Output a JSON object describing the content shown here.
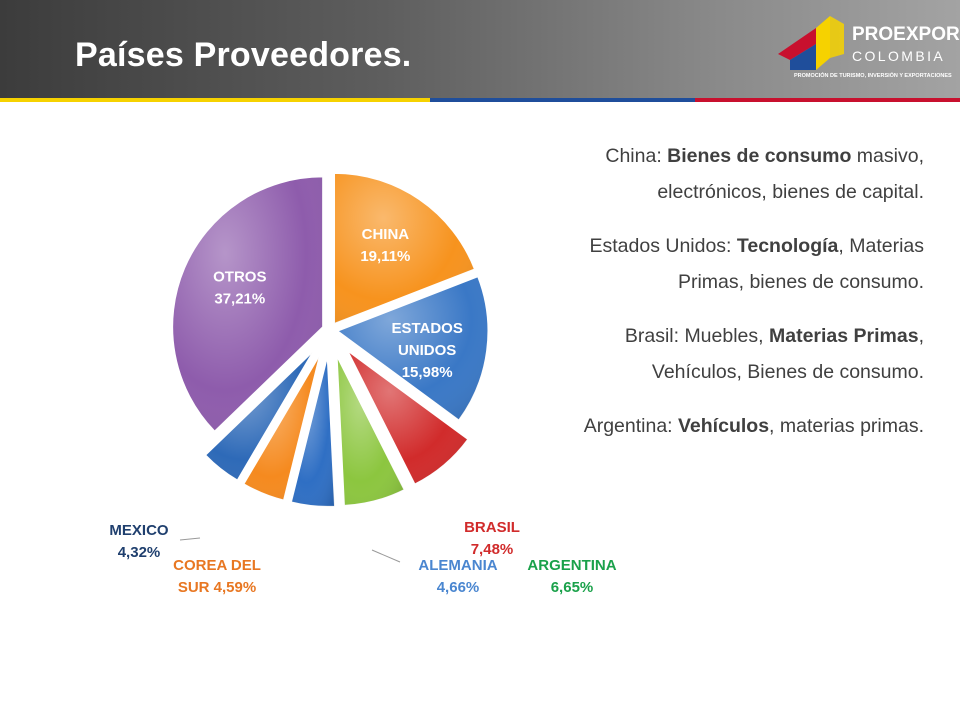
{
  "slide": {
    "title": "Países Proveedores."
  },
  "logo": {
    "name": "PROEXPORT",
    "country": "COLOMBIA",
    "tagline": "PROMOCIÓN DE TURISMO, INVERSIÓN Y EXPORTACIONES"
  },
  "colors": {
    "stripe": [
      "#f6d200",
      "#1f4e9b",
      "#c8102e"
    ]
  },
  "notes": [
    {
      "parts": [
        {
          "t": "China: ",
          "b": false
        },
        {
          "t": "Bienes de consumo",
          "b": true
        },
        {
          "t": " masivo, electrónicos, bienes de capital.",
          "b": false
        }
      ]
    },
    {
      "parts": [
        {
          "t": "Estados Unidos: ",
          "b": false
        },
        {
          "t": "Tecnología",
          "b": true
        },
        {
          "t": ", Materias Primas, bienes de consumo.",
          "b": false
        }
      ]
    },
    {
      "parts": [
        {
          "t": "Brasil: Muebles, ",
          "b": false
        },
        {
          "t": "Materias Primas",
          "b": true
        },
        {
          "t": ", Vehículos, Bienes de consumo.",
          "b": false
        }
      ]
    },
    {
      "parts": [
        {
          "t": "Argentina: ",
          "b": false
        },
        {
          "t": "Vehículos",
          "b": true
        },
        {
          "t": ", materias primas.",
          "b": false
        }
      ]
    }
  ],
  "chart_data": {
    "type": "pie",
    "slices": [
      {
        "name": "CHINA",
        "value": 19.11,
        "label_lines": [
          "CHINA",
          "19,11%"
        ],
        "color": "#f7931e",
        "label_color": "#ffffff",
        "explode": 0
      },
      {
        "name": "ESTADOS UNIDOS",
        "value": 15.98,
        "label_lines": [
          "ESTADOS",
          "UNIDOS",
          "15,98%"
        ],
        "color": "#3a78c6",
        "label_color": "#ffffff",
        "explode": 0
      },
      {
        "name": "BRASIL",
        "value": 7.48,
        "label_lines": [
          "BRASIL",
          "7,48%"
        ],
        "color": "#d12b2b",
        "label_color": "#d12b2b",
        "explode": 1
      },
      {
        "name": "ARGENTINA",
        "value": 6.65,
        "label_lines": [
          "ARGENTINA",
          "6,65%"
        ],
        "color": "#8cc63f",
        "label_color": "#1aa14a",
        "explode": 1
      },
      {
        "name": "ALEMANIA",
        "value": 4.66,
        "label_lines": [
          "ALEMANIA",
          "4,66%"
        ],
        "color": "#2f6fc4",
        "label_color": "#4a86d0",
        "explode": 1
      },
      {
        "name": "COREA DEL SUR",
        "value": 4.59,
        "label_lines": [
          "COREA DEL",
          "SUR  4,59%"
        ],
        "color": "#f58a1f",
        "label_color": "#e87722",
        "explode": 1
      },
      {
        "name": "MEXICO",
        "value": 4.32,
        "label_lines": [
          "MEXICO",
          "4,32%"
        ],
        "color": "#2e6ab8",
        "label_color": "#1f3f6e",
        "explode": 1
      },
      {
        "name": "OTROS",
        "value": 37.21,
        "label_lines": [
          "OTROS",
          "37,21%"
        ],
        "color": "#8e5cac",
        "label_color": "#ffffff",
        "explode": 0
      }
    ]
  }
}
